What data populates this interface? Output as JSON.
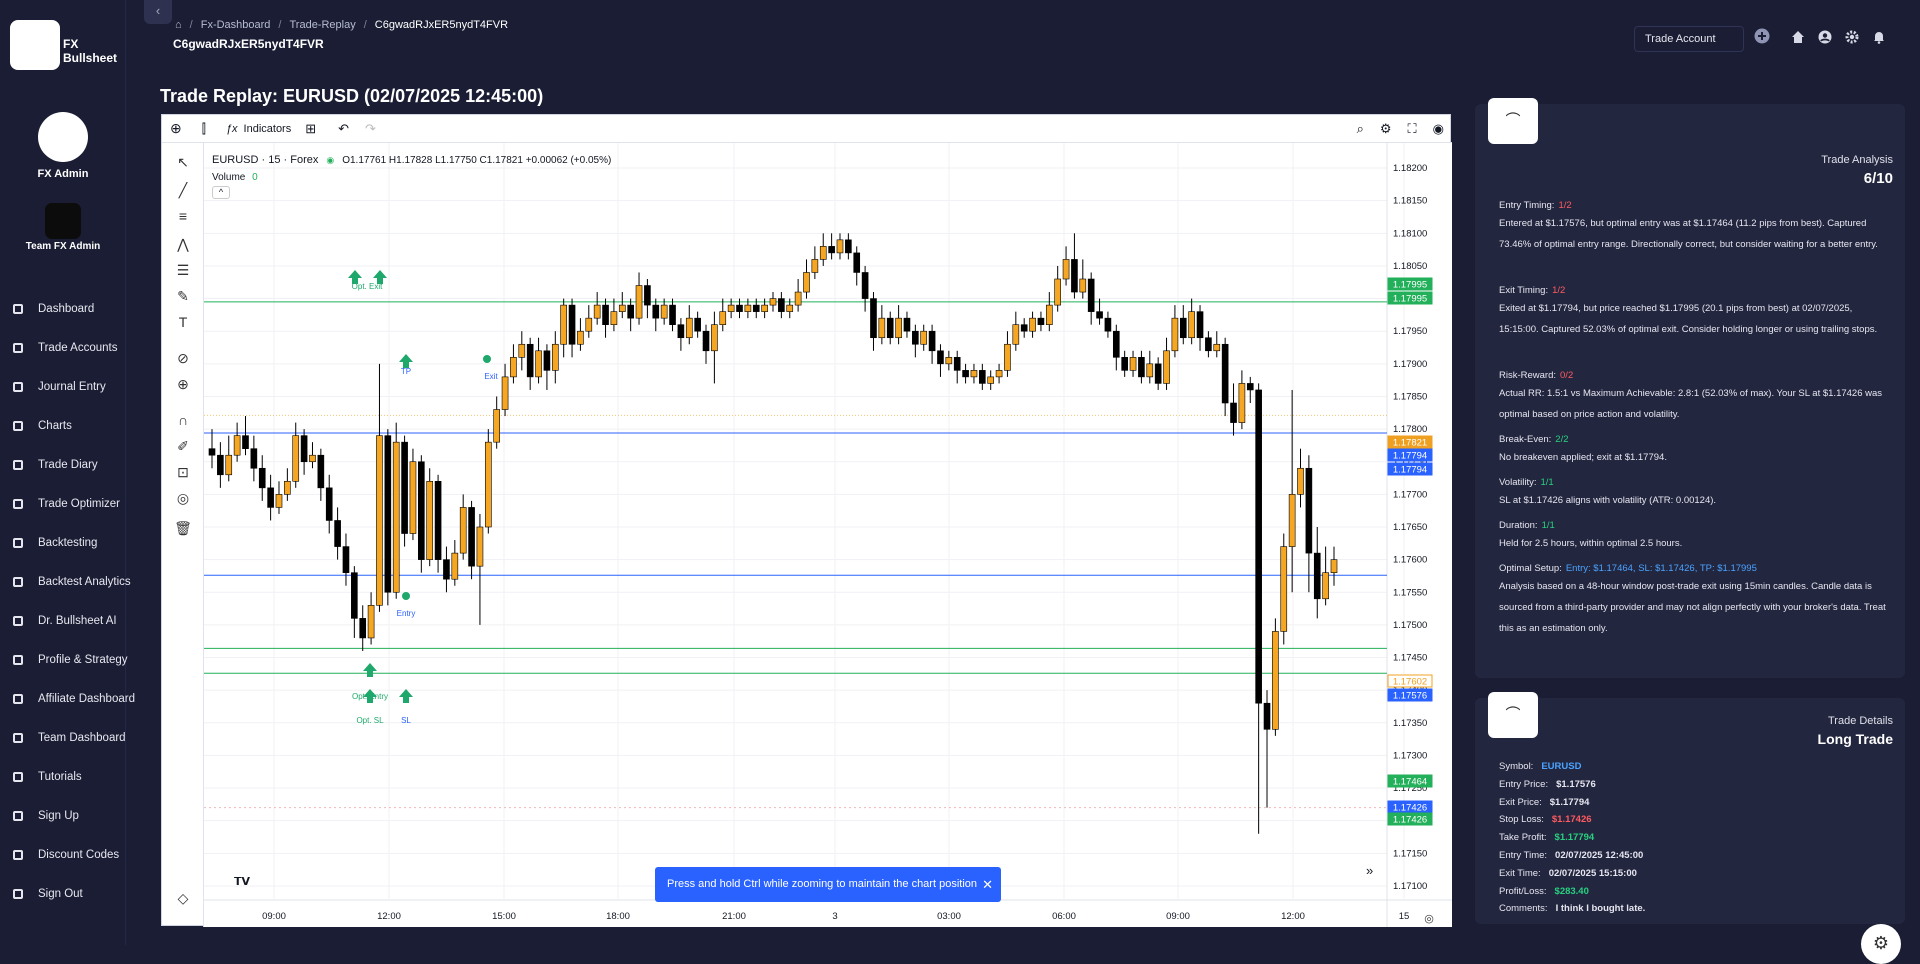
{
  "brand": {
    "name": "FX Bullsheet"
  },
  "user": {
    "name": "FX Admin",
    "team": "Team FX Admin"
  },
  "nav": [
    {
      "label": "Dashboard",
      "icon": "grid-icon"
    },
    {
      "label": "Trade Accounts",
      "icon": "grid-icon"
    },
    {
      "label": "Journal Entry",
      "icon": "book-icon"
    },
    {
      "label": "Charts",
      "icon": "chart-icon"
    },
    {
      "label": "Trade Diary",
      "icon": "diary-icon"
    },
    {
      "label": "Trade Optimizer",
      "icon": "grid-icon"
    },
    {
      "label": "Backtesting",
      "icon": "chart-icon"
    },
    {
      "label": "Backtest Analytics",
      "icon": "analytics-icon"
    },
    {
      "label": "Dr. Bullsheet AI",
      "icon": "robot-icon"
    },
    {
      "label": "Profile & Strategy",
      "icon": "person-icon"
    },
    {
      "label": "Affiliate Dashboard",
      "icon": "tag-icon"
    },
    {
      "label": "Team Dashboard",
      "icon": "team-icon"
    },
    {
      "label": "Tutorials",
      "icon": "school-icon"
    },
    {
      "label": "Sign Up",
      "icon": "person-icon"
    },
    {
      "label": "Discount Codes",
      "icon": "tag-icon"
    },
    {
      "label": "Sign Out",
      "icon": "signout-icon"
    }
  ],
  "breadcrumb": [
    "Fx-Dashboard",
    "Trade-Replay",
    "C6gwadRJxER5nydT4FVR"
  ],
  "header_id": "C6gwadRJxER5nydT4FVR",
  "account_select": "Trade Account",
  "page_title": "Trade Replay: EURUSD (02/07/2025 12:45:00)",
  "toolbar": {
    "indicators": "Indicators"
  },
  "chart": {
    "symbol": "EURUSD · 15 · Forex",
    "ohlc": "O1.17761  H1.17828  L1.17750  C1.17821  +0.00062 (+0.05%)",
    "volume_label": "Volume",
    "volume_value": "0",
    "toast": "Press and hold Ctrl while zooming to maintain the chart position"
  },
  "chart_data": {
    "type": "candlestick",
    "symbol": "EURUSD",
    "timeframe": "15",
    "x_ticks": [
      "09:00",
      "12:00",
      "15:00",
      "18:00",
      "21:00",
      "3",
      "03:00",
      "06:00",
      "09:00",
      "12:00",
      "15"
    ],
    "y_ticks": [
      "1.18200",
      "1.18150",
      "1.18100",
      "1.18050",
      "1.18000",
      "1.17950",
      "1.17900",
      "1.17850",
      "1.17800",
      "1.17750",
      "1.17700",
      "1.17650",
      "1.17600",
      "1.17550",
      "1.17500",
      "1.17450",
      "1.17400",
      "1.17350",
      "1.17300",
      "1.17250",
      "1.17200",
      "1.17150",
      "1.17100"
    ],
    "ylim": [
      1.1708,
      1.1822
    ],
    "price_labels": [
      {
        "value": "1.17995",
        "color": "#22b05a"
      },
      {
        "value": "1.17995",
        "color": "#22b05a"
      },
      {
        "value": "1.17821",
        "color": "#f0a020"
      },
      {
        "value": "1.17794",
        "color": "#2962ff"
      },
      {
        "value": "1.17794",
        "color": "#2962ff"
      },
      {
        "value": "1.17602",
        "color": "#ffffff"
      },
      {
        "value": "1.17576",
        "color": "#2962ff"
      },
      {
        "value": "1.17464",
        "color": "#22b05a"
      },
      {
        "value": "1.17426",
        "color": "#2962ff"
      },
      {
        "value": "1.17426",
        "color": "#22b05a"
      }
    ],
    "levels": [
      {
        "price": 1.17995,
        "color": "#22b05a"
      },
      {
        "price": 1.17794,
        "color": "#2962ff"
      },
      {
        "price": 1.17576,
        "color": "#2962ff"
      },
      {
        "price": 1.17464,
        "color": "#22b05a"
      },
      {
        "price": 1.17426,
        "color": "#22b05a"
      }
    ],
    "markers": [
      "Opt. Exit",
      "TP",
      "Exit",
      "Entry",
      "Opt. Entry",
      "Opt. SL",
      "SL"
    ],
    "candles": [
      [
        1.1777,
        1.1776,
        1.178,
        1.1774
      ],
      [
        1.1776,
        1.1773,
        1.1778,
        1.1771
      ],
      [
        1.1773,
        1.1776,
        1.1779,
        1.1772
      ],
      [
        1.1776,
        1.1779,
        1.1781,
        1.1775
      ],
      [
        1.1779,
        1.1777,
        1.1782,
        1.1776
      ],
      [
        1.1777,
        1.1774,
        1.1779,
        1.1772
      ],
      [
        1.1774,
        1.1771,
        1.1776,
        1.1769
      ],
      [
        1.1771,
        1.1768,
        1.1773,
        1.1766
      ],
      [
        1.1768,
        1.177,
        1.1772,
        1.1767
      ],
      [
        1.177,
        1.1772,
        1.1774,
        1.1769
      ],
      [
        1.1772,
        1.1779,
        1.1781,
        1.1771
      ],
      [
        1.1779,
        1.1775,
        1.178,
        1.1773
      ],
      [
        1.1775,
        1.1776,
        1.1778,
        1.1774
      ],
      [
        1.1776,
        1.1771,
        1.1777,
        1.1769
      ],
      [
        1.1771,
        1.1766,
        1.1773,
        1.1764
      ],
      [
        1.1766,
        1.1762,
        1.1768,
        1.176
      ],
      [
        1.1762,
        1.1758,
        1.1764,
        1.1756
      ],
      [
        1.1758,
        1.1751,
        1.1759,
        1.1748
      ],
      [
        1.1751,
        1.1748,
        1.1753,
        1.1746
      ],
      [
        1.1748,
        1.1753,
        1.1755,
        1.1747
      ],
      [
        1.1753,
        1.1779,
        1.179,
        1.1752
      ],
      [
        1.1779,
        1.1755,
        1.178,
        1.1753
      ],
      [
        1.1755,
        1.1778,
        1.1781,
        1.1754
      ],
      [
        1.1778,
        1.1764,
        1.1779,
        1.1762
      ],
      [
        1.1764,
        1.1775,
        1.1777,
        1.1763
      ],
      [
        1.1775,
        1.176,
        1.1776,
        1.1758
      ],
      [
        1.176,
        1.1772,
        1.1774,
        1.1759
      ],
      [
        1.1772,
        1.176,
        1.1773,
        1.1758
      ],
      [
        1.176,
        1.1757,
        1.1762,
        1.1755
      ],
      [
        1.1757,
        1.1761,
        1.1763,
        1.1756
      ],
      [
        1.1761,
        1.1768,
        1.177,
        1.176
      ],
      [
        1.1768,
        1.1759,
        1.1769,
        1.1757
      ],
      [
        1.1759,
        1.1765,
        1.1767,
        1.175
      ],
      [
        1.1765,
        1.1778,
        1.178,
        1.1764
      ],
      [
        1.1778,
        1.1783,
        1.1785,
        1.1777
      ],
      [
        1.1783,
        1.1788,
        1.179,
        1.1782
      ],
      [
        1.1788,
        1.1791,
        1.1793,
        1.1787
      ],
      [
        1.1791,
        1.1793,
        1.1795,
        1.1789
      ],
      [
        1.1793,
        1.1788,
        1.1794,
        1.1786
      ],
      [
        1.1788,
        1.1792,
        1.1794,
        1.1787
      ],
      [
        1.1792,
        1.1789,
        1.1793,
        1.1786
      ],
      [
        1.1789,
        1.1793,
        1.1795,
        1.1787
      ],
      [
        1.1793,
        1.1799,
        1.18,
        1.1791
      ],
      [
        1.1799,
        1.1793,
        1.18,
        1.1791
      ],
      [
        1.1793,
        1.1795,
        1.1797,
        1.1792
      ],
      [
        1.1795,
        1.1797,
        1.1799,
        1.1794
      ],
      [
        1.1797,
        1.1799,
        1.1801,
        1.1796
      ],
      [
        1.1799,
        1.1796,
        1.18,
        1.1794
      ],
      [
        1.1796,
        1.1798,
        1.18,
        1.1795
      ],
      [
        1.1798,
        1.1799,
        1.1801,
        1.1797
      ],
      [
        1.1799,
        1.1797,
        1.18,
        1.1795
      ],
      [
        1.1797,
        1.1802,
        1.1804,
        1.1796
      ],
      [
        1.1802,
        1.1799,
        1.1803,
        1.1797
      ],
      [
        1.1799,
        1.1797,
        1.18,
        1.1795
      ],
      [
        1.1797,
        1.1799,
        1.18,
        1.1796
      ],
      [
        1.1799,
        1.1796,
        1.18,
        1.1795
      ],
      [
        1.1796,
        1.1794,
        1.1797,
        1.1792
      ],
      [
        1.1794,
        1.1797,
        1.1799,
        1.1793
      ],
      [
        1.1797,
        1.1795,
        1.1798,
        1.1794
      ],
      [
        1.1795,
        1.1792,
        1.1796,
        1.179
      ],
      [
        1.1792,
        1.1796,
        1.1798,
        1.1787
      ],
      [
        1.1796,
        1.1798,
        1.18,
        1.1795
      ],
      [
        1.1798,
        1.1799,
        1.18,
        1.1797
      ],
      [
        1.1799,
        1.1798,
        1.18,
        1.1797
      ],
      [
        1.1798,
        1.1799,
        1.18,
        1.1797
      ],
      [
        1.1799,
        1.1798,
        1.18,
        1.1797
      ],
      [
        1.1798,
        1.1799,
        1.18,
        1.1797
      ],
      [
        1.1799,
        1.18,
        1.1801,
        1.1798
      ],
      [
        1.18,
        1.1798,
        1.1801,
        1.1797
      ],
      [
        1.1798,
        1.1799,
        1.18,
        1.1797
      ],
      [
        1.1799,
        1.1801,
        1.1803,
        1.1798
      ],
      [
        1.1801,
        1.1804,
        1.1806,
        1.18
      ],
      [
        1.1804,
        1.1806,
        1.1808,
        1.1803
      ],
      [
        1.1806,
        1.1808,
        1.181,
        1.1805
      ],
      [
        1.1808,
        1.1807,
        1.181,
        1.1806
      ],
      [
        1.1807,
        1.1809,
        1.181,
        1.1806
      ],
      [
        1.1809,
        1.1807,
        1.181,
        1.1806
      ],
      [
        1.1807,
        1.1804,
        1.1808,
        1.1802
      ],
      [
        1.1804,
        1.18,
        1.1805,
        1.1798
      ],
      [
        1.18,
        1.1794,
        1.1801,
        1.1792
      ],
      [
        1.1794,
        1.1797,
        1.1799,
        1.1793
      ],
      [
        1.1797,
        1.1794,
        1.1798,
        1.1793
      ],
      [
        1.1794,
        1.1797,
        1.1799,
        1.1793
      ],
      [
        1.1797,
        1.1795,
        1.1798,
        1.1794
      ],
      [
        1.1795,
        1.1793,
        1.1796,
        1.1791
      ],
      [
        1.1793,
        1.1795,
        1.1796,
        1.1792
      ],
      [
        1.1795,
        1.1792,
        1.1796,
        1.179
      ],
      [
        1.1792,
        1.179,
        1.1793,
        1.1788
      ],
      [
        1.179,
        1.1791,
        1.1792,
        1.1789
      ],
      [
        1.1791,
        1.1789,
        1.1792,
        1.1787
      ],
      [
        1.1789,
        1.1788,
        1.179,
        1.1787
      ],
      [
        1.1788,
        1.1789,
        1.179,
        1.1787
      ],
      [
        1.1789,
        1.1787,
        1.179,
        1.1786
      ],
      [
        1.1787,
        1.1788,
        1.1789,
        1.1786
      ],
      [
        1.1788,
        1.1789,
        1.179,
        1.1787
      ],
      [
        1.1789,
        1.1793,
        1.1795,
        1.1788
      ],
      [
        1.1793,
        1.1796,
        1.1798,
        1.1792
      ],
      [
        1.1796,
        1.1795,
        1.1797,
        1.1794
      ],
      [
        1.1795,
        1.1797,
        1.1798,
        1.1794
      ],
      [
        1.1797,
        1.1796,
        1.1798,
        1.1795
      ],
      [
        1.1796,
        1.1799,
        1.1801,
        1.1795
      ],
      [
        1.1799,
        1.1803,
        1.1805,
        1.1798
      ],
      [
        1.1803,
        1.1806,
        1.1808,
        1.1802
      ],
      [
        1.1806,
        1.1801,
        1.181,
        1.18
      ],
      [
        1.1801,
        1.1803,
        1.1806,
        1.18
      ],
      [
        1.1803,
        1.1798,
        1.1804,
        1.1796
      ],
      [
        1.1798,
        1.1797,
        1.18,
        1.1796
      ],
      [
        1.1797,
        1.1795,
        1.1798,
        1.1794
      ],
      [
        1.1795,
        1.1791,
        1.1796,
        1.1789
      ],
      [
        1.1791,
        1.1789,
        1.1792,
        1.1788
      ],
      [
        1.1789,
        1.1791,
        1.1792,
        1.1788
      ],
      [
        1.1791,
        1.1788,
        1.1792,
        1.1787
      ],
      [
        1.1788,
        1.179,
        1.1792,
        1.1787
      ],
      [
        1.179,
        1.1787,
        1.1791,
        1.1786
      ],
      [
        1.1787,
        1.1792,
        1.1794,
        1.1786
      ],
      [
        1.1792,
        1.1797,
        1.1799,
        1.1791
      ],
      [
        1.1797,
        1.1794,
        1.1799,
        1.1793
      ],
      [
        1.1794,
        1.1798,
        1.18,
        1.1793
      ],
      [
        1.1798,
        1.1794,
        1.1799,
        1.1792
      ],
      [
        1.1794,
        1.1792,
        1.1795,
        1.1791
      ],
      [
        1.1792,
        1.1793,
        1.1795,
        1.1791
      ],
      [
        1.1793,
        1.1784,
        1.1794,
        1.1782
      ],
      [
        1.1784,
        1.1781,
        1.1787,
        1.1779
      ],
      [
        1.1781,
        1.1787,
        1.1789,
        1.178
      ],
      [
        1.1787,
        1.1786,
        1.1788,
        1.1784
      ],
      [
        1.1786,
        1.1738,
        1.1787,
        1.1718
      ],
      [
        1.1738,
        1.1734,
        1.174,
        1.1722
      ],
      [
        1.1734,
        1.1749,
        1.1751,
        1.1733
      ],
      [
        1.1749,
        1.1762,
        1.1764,
        1.1747
      ],
      [
        1.1762,
        1.177,
        1.1786,
        1.1755
      ],
      [
        1.177,
        1.1774,
        1.1777,
        1.1768
      ],
      [
        1.1774,
        1.1761,
        1.1776,
        1.1755
      ],
      [
        1.1761,
        1.1754,
        1.1765,
        1.1751
      ],
      [
        1.1754,
        1.1758,
        1.1762,
        1.1753
      ],
      [
        1.1758,
        1.176,
        1.1762,
        1.1756
      ]
    ]
  },
  "analysis": {
    "title": "Trade Analysis",
    "score": "6/10",
    "items": [
      {
        "label": "Entry Timing:",
        "score": "1/2",
        "cls": "red",
        "text": "Entered at $1.17576, but optimal entry was at $1.17464 (11.2 pips from best). Captured 73.46% of optimal entry range. Directionally correct, but consider waiting for a better entry."
      },
      {
        "label": "Exit Timing:",
        "score": "1/2",
        "cls": "red",
        "text": "Exited at $1.17794, but price reached $1.17995 (20.1 pips from best) at 02/07/2025, 15:15:00. Captured 52.03% of optimal exit. Consider holding longer or using trailing stops."
      },
      {
        "label": "Risk-Reward:",
        "score": "0/2",
        "cls": "red",
        "text": "Actual RR: 1.5:1 vs Maximum Achievable: 2.8:1 (52.03% of max). Your SL at $1.17426 was optimal based on price action and volatility."
      },
      {
        "label": "Break-Even:",
        "score": "2/2",
        "cls": "green",
        "text": "No breakeven applied; exit at $1.17794."
      },
      {
        "label": "Volatility:",
        "score": "1/1",
        "cls": "green",
        "text": "SL at $1.17426 aligns with volatility (ATR: 0.00124)."
      },
      {
        "label": "Duration:",
        "score": "1/1",
        "cls": "green",
        "text": "Held for 2.5 hours, within optimal 2.5 hours."
      }
    ],
    "optimal_label": "Optimal Setup:",
    "optimal_value": "Entry: $1.17464, SL: $1.17426, TP: $1.17995",
    "note": "Analysis based on a 48-hour window post-trade exit using 15min candles. Candle data is sourced from a third-party provider and may not align perfectly with your broker's data. Treat this as an estimation only."
  },
  "details": {
    "title": "Trade Details",
    "subtitle": "Long Trade",
    "rows": [
      {
        "label": "Symbol:",
        "value": "EURUSD",
        "cls": "blue"
      },
      {
        "label": "Entry Price:",
        "value": "$1.17576",
        "cls": ""
      },
      {
        "label": "Exit Price:",
        "value": "$1.17794",
        "cls": ""
      },
      {
        "label": "Stop Loss:",
        "value": "$1.17426",
        "cls": "red"
      },
      {
        "label": "Take Profit:",
        "value": "$1.17794",
        "cls": "green"
      },
      {
        "label": "Entry Time:",
        "value": "02/07/2025 12:45:00",
        "cls": ""
      },
      {
        "label": "Exit Time:",
        "value": "02/07/2025 15:15:00",
        "cls": ""
      },
      {
        "label": "Profit/Loss:",
        "value": "$283.40",
        "cls": "green"
      },
      {
        "label": "Comments:",
        "value": "I think I bought late.",
        "cls": ""
      }
    ]
  }
}
